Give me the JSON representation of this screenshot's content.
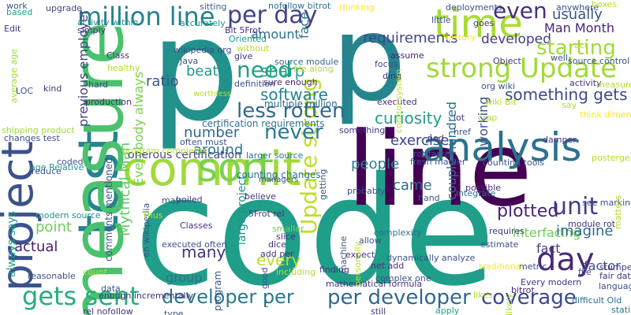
{
  "words": [
    {
      "text": "code",
      "color": "#1f9e89"
    },
    {
      "text": "p",
      "color": "#21918c"
    },
    {
      "text": "p",
      "color": "#25858e"
    },
    {
      "text": "line",
      "color": "#440154"
    },
    {
      "text": "commit",
      "color": "#a0da39"
    },
    {
      "text": "test",
      "color": "#25848e"
    },
    {
      "text": "measure",
      "color": "#4ac16d"
    },
    {
      "text": "project",
      "color": "#3b528b"
    },
    {
      "text": "time",
      "color": "#a8db34"
    },
    {
      "text": "million line",
      "color": "#26828e"
    },
    {
      "text": "analysis",
      "color": "#2c728e"
    },
    {
      "text": "strong Update",
      "color": "#a0da39"
    },
    {
      "text": "Update strong",
      "color": "#bddf26"
    },
    {
      "text": "per day",
      "color": "#414487"
    },
    {
      "text": "sort",
      "color": "#7ad151"
    },
    {
      "text": "gets sent",
      "color": "#26ad81"
    },
    {
      "text": "developer per",
      "color": "#2a788e"
    },
    {
      "text": "per developer",
      "color": "#31688e"
    },
    {
      "text": "coverage",
      "color": "#3e4989"
    },
    {
      "text": "day",
      "color": "#482878"
    },
    {
      "text": "unit",
      "color": "#433e85"
    },
    {
      "text": "even",
      "color": "#472f7d"
    },
    {
      "text": "need",
      "color": "#1f9e89"
    },
    {
      "text": "never",
      "color": "#2a788e"
    },
    {
      "text": "less rotten",
      "color": "#31688e"
    },
    {
      "text": "curiosity",
      "color": "#1f9e89"
    },
    {
      "text": "requirements",
      "color": "#414487"
    },
    {
      "text": "developed",
      "color": "#443983"
    },
    {
      "text": "usually",
      "color": "#3b528b"
    },
    {
      "text": "Man Month",
      "color": "#482475"
    },
    {
      "text": "starting",
      "color": "#a0da39"
    },
    {
      "text": "something gets",
      "color": "#3e4989"
    },
    {
      "text": "software",
      "color": "#25848e"
    },
    {
      "text": "sharp",
      "color": "#20a486"
    },
    {
      "text": "amount",
      "color": "#2c728e"
    },
    {
      "text": "beat",
      "color": "#1f988b"
    },
    {
      "text": "ratio",
      "color": "#3b528b"
    },
    {
      "text": "previous employer",
      "color": "#433e85"
    },
    {
      "text": "Mythical Man",
      "color": "#5ec962"
    },
    {
      "text": "Everybody always",
      "color": "#7ad151"
    },
    {
      "text": "number",
      "color": "#31688e"
    },
    {
      "text": "around",
      "color": "#287c8e"
    },
    {
      "text": "onerous certification",
      "color": "#414487"
    },
    {
      "text": "exercise",
      "color": "#414487"
    },
    {
      "text": "people",
      "color": "#26828e"
    },
    {
      "text": "came",
      "color": "#31688e"
    },
    {
      "text": "couple hundred",
      "color": "#2c728e"
    },
    {
      "text": "plotted",
      "color": "#482475"
    },
    {
      "text": "interfacing",
      "color": "#6ece58"
    },
    {
      "text": "fact",
      "color": "#433e85"
    },
    {
      "text": "imagine",
      "color": "#31688e"
    },
    {
      "text": "factor",
      "color": "#3b528b"
    },
    {
      "text": "point",
      "color": "#6ece58"
    },
    {
      "text": "many",
      "color": "#46337e"
    },
    {
      "text": "actual",
      "color": "#481b6d"
    },
    {
      "text": "every",
      "color": "#bddf26"
    },
    {
      "text": "group",
      "color": "#2c728e"
    },
    {
      "text": "large project",
      "color": "#21918c"
    },
    {
      "text": "always says",
      "color": "#1fa188"
    },
    {
      "text": "working",
      "color": "#3b528b"
    },
    {
      "text": "counting changes",
      "color": "#2c728e"
    },
    {
      "text": "certification requirements",
      "color": "#2c728e"
    },
    {
      "text": "multiple million",
      "color": "#31688e"
    },
    {
      "text": "sure enough",
      "color": "#482878"
    },
    {
      "text": "file along",
      "color": "#b5de2b"
    },
    {
      "text": "source module",
      "color": "#31688e"
    },
    {
      "text": "face",
      "color": "#2c728e"
    },
    {
      "text": "deployments",
      "color": "#3b528b"
    },
    {
      "text": "assume",
      "color": "#482475"
    },
    {
      "text": "focus",
      "color": "#3e4989"
    },
    {
      "text": "ding",
      "color": "#46337e"
    },
    {
      "text": "org wiki",
      "color": "#3b528b"
    },
    {
      "text": "source control",
      "color": "#3b528b"
    },
    {
      "text": "history",
      "color": "#fde725"
    },
    {
      "text": "Bit 5Frot",
      "color": "#472f7d"
    },
    {
      "text": "wikipedia org",
      "color": "#3e4989"
    },
    {
      "text": "accurately",
      "color": "#1f988b"
    },
    {
      "text": "sitting",
      "color": "#355f8d"
    },
    {
      "text": "nofollow bitrot",
      "color": "#2c728e"
    },
    {
      "text": "activity within",
      "color": "#21918c"
    },
    {
      "text": "upgrade",
      "color": "#3e4989"
    },
    {
      "text": "work",
      "color": "#3b528b"
    },
    {
      "text": "based",
      "color": "#1f9e89"
    },
    {
      "text": "average age",
      "color": "#a0da39"
    },
    {
      "text": "shipping product",
      "color": "#a0da39"
    },
    {
      "text": "changes test",
      "color": "#3b528b"
    },
    {
      "text": "age Relative",
      "color": "#1f988b"
    },
    {
      "text": "reduce",
      "color": "#3b528b"
    },
    {
      "text": "modern source",
      "color": "#21918c"
    },
    {
      "text": "production",
      "color": "#46337e"
    },
    {
      "text": "definition",
      "color": "#3b528b"
    },
    {
      "text": "LOC",
      "color": "#3b528b"
    },
    {
      "text": "kind",
      "color": "#46337e"
    },
    {
      "text": "hard",
      "color": "#3e4989"
    },
    {
      "text": "often must",
      "color": "#3b528b"
    },
    {
      "text": "larger source",
      "color": "#2c728e"
    },
    {
      "text": "counting tools",
      "color": "#3b528b"
    },
    {
      "text": "fresh marker",
      "color": "#3b528b"
    },
    {
      "text": "integrate",
      "color": "#2c728e"
    },
    {
      "text": "possible",
      "color": "#46337e"
    },
    {
      "text": "see marking",
      "color": "#3b528b"
    },
    {
      "text": "module rot",
      "color": "#46337e"
    },
    {
      "text": "difficult Old",
      "color": "#2c728e"
    },
    {
      "text": "statically",
      "color": "#2c728e"
    },
    {
      "text": "apply",
      "color": "#1fa188"
    },
    {
      "text": "bitrot",
      "color": "#482878"
    },
    {
      "text": "Every modern",
      "color": "#46337e"
    },
    {
      "text": "fair data",
      "color": "#46337e"
    },
    {
      "text": "file",
      "color": "#3b528b"
    },
    {
      "text": "metric",
      "color": "#3e4989"
    },
    {
      "text": "requires",
      "color": "#46337e"
    },
    {
      "text": "estimate",
      "color": "#3b528b"
    },
    {
      "text": "expect",
      "color": "#46337e"
    },
    {
      "text": "dynamically analyze",
      "color": "#3b528b"
    },
    {
      "text": "net add",
      "color": "#46337e"
    },
    {
      "text": "complexity",
      "color": "#2c728e"
    },
    {
      "text": "allow",
      "color": "#3b528b"
    },
    {
      "text": "complex one",
      "color": "#3b528b"
    },
    {
      "text": "still",
      "color": "#46337e"
    },
    {
      "text": "mathematical formula",
      "color": "#46337e"
    },
    {
      "text": "finding",
      "color": "#46337e"
    },
    {
      "text": "smaller",
      "color": "#6ece58"
    },
    {
      "text": "slice",
      "color": "#46337e"
    },
    {
      "text": "dice",
      "color": "#46337e"
    },
    {
      "text": "add per",
      "color": "#46337e"
    },
    {
      "text": "5Frot rel",
      "color": "#46337e"
    },
    {
      "text": "Classes",
      "color": "#46337e"
    },
    {
      "text": "en wikipedia",
      "color": "#3b528b"
    },
    {
      "text": "rel nofollow",
      "color": "#46337e"
    },
    {
      "text": "enough incrementally",
      "color": "#46337e"
    },
    {
      "text": "data",
      "color": "#3b528b"
    },
    {
      "text": "type",
      "color": "#3b528b"
    },
    {
      "text": "program",
      "color": "#3b528b"
    },
    {
      "text": "comments mentioned",
      "color": "#3b528b"
    },
    {
      "text": "executed often",
      "color": "#3b528b"
    },
    {
      "text": "nod",
      "color": "#46337e"
    },
    {
      "text": "lot",
      "color": "#46337e"
    },
    {
      "text": "rot faster",
      "color": "#3b528b"
    },
    {
      "text": "executed",
      "color": "#46337e"
    },
    {
      "text": "href",
      "color": "#3b528b"
    },
    {
      "text": "hand",
      "color": "#3b528b"
    },
    {
      "text": "machine",
      "color": "#3b528b"
    },
    {
      "text": "probably",
      "color": "#3b528b"
    },
    {
      "text": "getting",
      "color": "#3b528b"
    },
    {
      "text": "something",
      "color": "#46337e"
    },
    {
      "text": "control system",
      "color": "#b5de2b"
    },
    {
      "text": "wiki Bit",
      "color": "#b5de2b"
    },
    {
      "text": "damper",
      "color": "#46337e"
    },
    {
      "text": "crap",
      "color": "#b5de2b"
    },
    {
      "text": "language",
      "color": "#3b528b"
    },
    {
      "text": "stumped",
      "color": "#46337e"
    },
    {
      "text": "activity",
      "color": "#46337e"
    },
    {
      "text": "measured",
      "color": "#b5de2b"
    },
    {
      "text": "anywhere",
      "color": "#3b528b"
    },
    {
      "text": "little",
      "color": "#3b528b"
    },
    {
      "text": "goes",
      "color": "#46337e"
    },
    {
      "text": "Object",
      "color": "#46337e"
    },
    {
      "text": "say",
      "color": "#b5de2b"
    },
    {
      "text": "think dimensional",
      "color": "#fde725"
    },
    {
      "text": "act",
      "color": "#b5de2b"
    },
    {
      "text": "thinking",
      "color": "#fde725"
    },
    {
      "text": "Oriented",
      "color": "#1f988b"
    },
    {
      "text": "give",
      "color": "#46337e"
    },
    {
      "text": "Java",
      "color": "#3b528b"
    },
    {
      "text": "simply",
      "color": "#46337e"
    },
    {
      "text": "Edit",
      "color": "#46337e"
    },
    {
      "text": "Class",
      "color": "#46337e"
    },
    {
      "text": "healthy",
      "color": "#b5de2b"
    },
    {
      "text": "managers",
      "color": "#3b528b"
    },
    {
      "text": "believe",
      "color": "#46337e"
    },
    {
      "text": "program completes",
      "color": "#b5de2b"
    },
    {
      "text": "postergeists",
      "color": "#b5de2b"
    },
    {
      "text": "matters",
      "color": "#b5de2b"
    },
    {
      "text": "likely",
      "color": "#b5de2b"
    },
    {
      "text": "count",
      "color": "#b5de2b"
    },
    {
      "text": "including",
      "color": "#b5de2b"
    },
    {
      "text": "reasonable",
      "color": "#3b528b"
    },
    {
      "text": "coded",
      "color": "#3b528b"
    },
    {
      "text": "boiled",
      "color": "#46337e"
    },
    {
      "text": "Thus",
      "color": "#b5de2b"
    },
    {
      "text": "may",
      "color": "#3b528b"
    },
    {
      "text": "worthless",
      "color": "#b5de2b"
    },
    {
      "text": "without",
      "color": "#b5de2b"
    },
    {
      "text": "personally",
      "color": "#b5de2b"
    },
    {
      "text": "good",
      "color": "#3b528b"
    },
    {
      "text": "well",
      "color": "#3b528b"
    },
    {
      "text": "traditional",
      "color": "#fde725"
    },
    {
      "text": "likes",
      "color": "#b5de2b"
    },
    {
      "text": "boxes",
      "color": "#b5de2b"
    },
    {
      "text": "c",
      "color": "#3b528b"
    }
  ]
}
